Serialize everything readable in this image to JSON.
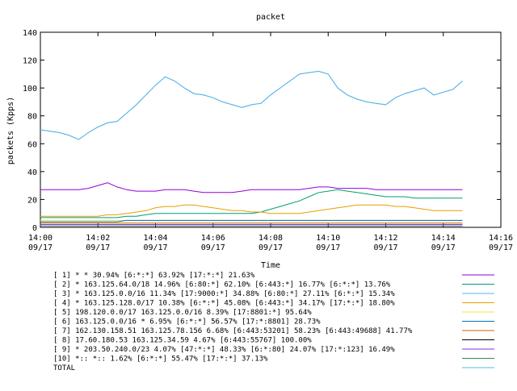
{
  "chart_data": {
    "type": "line",
    "title": "packet",
    "xlabel": "Time",
    "ylabel": "packets (Kpps)",
    "ylim": [
      0,
      140
    ],
    "yticks": [
      0,
      20,
      40,
      60,
      80,
      100,
      120,
      140
    ],
    "xlim": [
      "14:00",
      "14:16"
    ],
    "xticks": [
      {
        "time": "14:00",
        "date": "09/17"
      },
      {
        "time": "14:02",
        "date": "09/17"
      },
      {
        "time": "14:04",
        "date": "09/17"
      },
      {
        "time": "14:06",
        "date": "09/17"
      },
      {
        "time": "14:08",
        "date": "09/17"
      },
      {
        "time": "14:10",
        "date": "09/17"
      },
      {
        "time": "14:12",
        "date": "09/17"
      },
      {
        "time": "14:14",
        "date": "09/17"
      },
      {
        "time": "14:16",
        "date": "09/17"
      }
    ],
    "grid": false,
    "legend_position": "bottom",
    "x": [
      "14:00:00",
      "14:00:20",
      "14:00:40",
      "14:01:00",
      "14:01:20",
      "14:01:40",
      "14:02:00",
      "14:02:20",
      "14:02:40",
      "14:03:00",
      "14:03:20",
      "14:03:40",
      "14:04:00",
      "14:04:20",
      "14:04:40",
      "14:05:00",
      "14:05:20",
      "14:05:40",
      "14:06:00",
      "14:06:20",
      "14:06:40",
      "14:07:00",
      "14:07:20",
      "14:07:40",
      "14:08:00",
      "14:08:20",
      "14:08:40",
      "14:09:00",
      "14:09:20",
      "14:09:40",
      "14:10:00",
      "14:10:20",
      "14:10:40",
      "14:11:00",
      "14:11:20",
      "14:11:40",
      "14:12:00",
      "14:12:20",
      "14:12:40",
      "14:13:00",
      "14:13:20",
      "14:13:40",
      "14:14:00",
      "14:14:20",
      "14:14:40"
    ],
    "series": [
      {
        "name": "[ 1] * * 30.94%  [6:*:*] 63.92% [17:*:*] 21.63%",
        "color": "#9400d3",
        "values": [
          27,
          27,
          27,
          27,
          27,
          28,
          30,
          32,
          29,
          27,
          26,
          26,
          26,
          27,
          27,
          27,
          26,
          25,
          25,
          25,
          25,
          26,
          27,
          27,
          27,
          27,
          27,
          27,
          28,
          29,
          29,
          28,
          28,
          28,
          28,
          27,
          27,
          27,
          27,
          27,
          27,
          27,
          27,
          27,
          27
        ]
      },
      {
        "name": "[ 2] * 163.125.64.0/18 14.96%  [6:80:*] 62.10% [6:443:*] 16.77% [6:*:*] 13.76%",
        "color": "#009e73",
        "values": [
          7,
          7,
          7,
          7,
          7,
          7,
          7,
          7,
          7,
          8,
          8,
          9,
          10,
          10,
          10,
          10,
          10,
          10,
          10,
          10,
          10,
          10,
          10,
          11,
          13,
          15,
          17,
          19,
          22,
          25,
          26,
          27,
          26,
          25,
          24,
          23,
          22,
          22,
          22,
          21,
          21,
          21,
          21,
          21,
          21
        ]
      },
      {
        "name": "[ 3] * 163.125.0.0/16 11.34%  [17:9000:*] 34.88% [6:80:*] 27.11% [6:*:*] 15.34%",
        "color": "#56b4e9",
        "values": [
          70,
          69,
          68,
          66,
          63,
          68,
          72,
          75,
          76,
          82,
          88,
          95,
          102,
          108,
          105,
          100,
          96,
          95,
          93,
          90,
          88,
          86,
          88,
          89,
          95,
          100,
          105,
          110,
          111,
          112,
          110,
          100,
          95,
          92,
          90,
          89,
          88,
          93,
          96,
          98,
          100,
          95,
          97,
          99,
          105
        ]
      },
      {
        "name": "[ 4] * 163.125.128.0/17 10.38%  [6:*:*] 45.08% [6:443:*] 34.17% [17:*:*] 18.80%",
        "color": "#e69f00",
        "values": [
          8,
          8,
          8,
          8,
          8,
          8,
          8,
          9,
          9,
          10,
          11,
          12,
          14,
          15,
          15,
          16,
          16,
          15,
          14,
          13,
          12,
          12,
          11,
          11,
          10,
          10,
          10,
          10,
          11,
          12,
          13,
          14,
          15,
          16,
          16,
          16,
          16,
          15,
          15,
          14,
          13,
          12,
          12,
          12,
          12
        ]
      },
      {
        "name": "[ 5] 198.120.0.0/17 163.125.0.0/16 8.39%  [17:8801:*] 95.64%",
        "color": "#f0e442",
        "values": [
          5,
          5,
          5,
          5,
          5,
          5,
          5,
          5,
          5,
          5,
          5,
          5,
          5,
          5,
          5,
          5,
          5,
          5,
          5,
          5,
          5,
          5,
          5,
          5,
          5,
          5,
          5,
          5,
          5,
          5,
          5,
          5,
          5,
          5,
          5,
          5,
          5,
          5,
          5,
          5,
          5,
          5,
          5,
          5,
          5
        ]
      },
      {
        "name": "[ 6] 163.125.0.0/16 * 6.95%  [6:*:*] 56.57% [17:*:8801] 28.73%",
        "color": "#0072b2",
        "values": [
          4,
          4,
          4,
          4,
          4,
          4,
          4,
          4,
          4,
          5,
          5,
          5,
          5,
          5,
          5,
          5,
          5,
          5,
          5,
          5,
          5,
          5,
          5,
          5,
          5,
          5,
          5,
          5,
          5,
          5,
          5,
          5,
          5,
          5,
          5,
          5,
          5,
          5,
          5,
          5,
          5,
          5,
          5,
          5,
          5
        ]
      },
      {
        "name": "[ 7] 162.130.158.51 163.125.78.156 6.68%  [6:443:53201] 58.23% [6:443:49688] 41.77%",
        "color": "#d55e00",
        "values": [
          3,
          3,
          3,
          3,
          3,
          3,
          3,
          3,
          3,
          3,
          3,
          3,
          3,
          3,
          3,
          3,
          3,
          3,
          3,
          3,
          3,
          3,
          3,
          3,
          3,
          3,
          3,
          3,
          3,
          3,
          3,
          3,
          3,
          3,
          3,
          3,
          3,
          3,
          3,
          3,
          3,
          3,
          3,
          3,
          3
        ]
      },
      {
        "name": "[ 8] 17.60.180.53 163.125.34.59 4.67%  [6:443:55767] 100.00%",
        "color": "#000000",
        "values": [
          2,
          2,
          2,
          2,
          2,
          2,
          2,
          2,
          2,
          2,
          2,
          2,
          2,
          2,
          2,
          2,
          2,
          2,
          2,
          2,
          2,
          2,
          2,
          2,
          2,
          2,
          2,
          2,
          2,
          2,
          2,
          2,
          2,
          2,
          2,
          2,
          2,
          2,
          2,
          2,
          2,
          2,
          2,
          2,
          2
        ]
      },
      {
        "name": "[ 9] * 203.50.240.0/23 4.07%  [47:*:*] 48.33% [6:*:80] 24.07% [17:*:123] 16.49%",
        "color": "#8a2be2",
        "values": [
          2,
          2,
          2,
          2,
          2,
          2,
          2,
          2,
          2,
          2,
          2,
          2,
          2,
          2,
          2,
          2,
          2,
          2,
          2,
          2,
          2,
          2,
          2,
          2,
          2,
          2,
          2,
          2,
          2,
          2,
          2,
          2,
          2,
          2,
          2,
          2,
          2,
          2,
          2,
          2,
          2,
          2,
          2,
          2,
          2
        ]
      },
      {
        "name": "[10] *:: *:: 1.62%  [6:*:*] 55.47% [17:*:*] 37.13%",
        "color": "#2e8b57",
        "values": [
          1,
          1,
          1,
          1,
          1,
          1,
          1,
          1,
          1,
          1,
          1,
          1,
          1,
          1,
          1,
          1,
          1,
          1,
          1,
          1,
          1,
          1,
          1,
          1,
          1,
          1,
          1,
          1,
          1,
          1,
          1,
          1,
          1,
          1,
          1,
          1,
          1,
          1,
          1,
          1,
          1,
          1,
          1,
          1,
          1
        ]
      },
      {
        "name": "TOTAL",
        "color": "#5ab4e6",
        "values": [
          70,
          69,
          68,
          66,
          63,
          68,
          72,
          75,
          76,
          82,
          88,
          95,
          102,
          108,
          105,
          100,
          96,
          95,
          93,
          90,
          88,
          86,
          88,
          89,
          95,
          100,
          105,
          110,
          111,
          112,
          110,
          100,
          95,
          92,
          90,
          89,
          88,
          93,
          96,
          98,
          100,
          95,
          97,
          99,
          105
        ]
      }
    ]
  }
}
